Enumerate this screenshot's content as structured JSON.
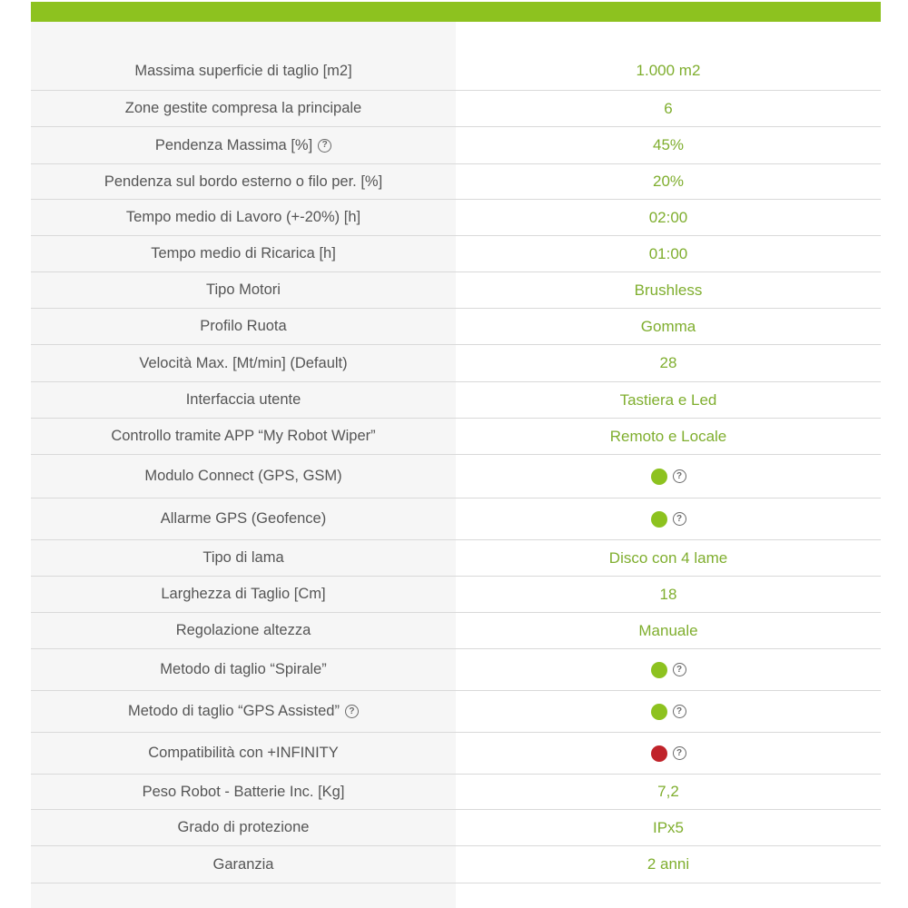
{
  "colors": {
    "accent": "#8dc21f",
    "value_text": "#7fae2e",
    "yes_dot": "#8dc21f",
    "no_dot": "#c0232a"
  },
  "rows": [
    {
      "label": "Massima superficie di taglio [m2]",
      "value": "1.000 m2"
    },
    {
      "label": "Zone gestite compresa la principale",
      "value": "6"
    },
    {
      "label": "Pendenza Massima [%]",
      "label_help_icon": "help-circle-icon",
      "value": "45%"
    },
    {
      "label": "Pendenza sul bordo esterno o filo per. [%]",
      "value": "20%"
    },
    {
      "label": "Tempo medio di Lavoro (+-20%) [h]",
      "value": "02:00"
    },
    {
      "label": "Tempo medio di Ricarica [h]",
      "value": "01:00"
    },
    {
      "label": "Tipo Motori",
      "value": "Brushless"
    },
    {
      "label": "Profilo Ruota",
      "value": "Gomma"
    },
    {
      "label": "Velocità Max. [Mt/min] (Default)",
      "value": "28"
    },
    {
      "label": "Interfaccia utente",
      "value": "Tastiera e Led"
    },
    {
      "label": "Controllo tramite APP “My Robot Wiper”",
      "value": "Remoto e Locale"
    },
    {
      "label": "Modulo Connect (GPS, GSM)",
      "value_indicator": "available",
      "value_help_icon": "help-circle-icon"
    },
    {
      "label": "Allarme GPS (Geofence)",
      "value_indicator": "available",
      "value_help_icon": "help-circle-icon"
    },
    {
      "label": "Tipo di lama",
      "value": "Disco con 4 lame"
    },
    {
      "label": "Larghezza di Taglio [Cm]",
      "value": "18"
    },
    {
      "label": "Regolazione altezza",
      "value": "Manuale"
    },
    {
      "label": "Metodo di taglio “Spirale”",
      "value_indicator": "available",
      "value_help_icon": "help-circle-icon"
    },
    {
      "label": "Metodo di taglio “GPS Assisted”",
      "label_help_icon": "help-circle-icon",
      "value_indicator": "available",
      "value_help_icon": "help-circle-icon"
    },
    {
      "label": "Compatibilità con +INFINITY",
      "value_indicator": "not-available",
      "value_help_icon": "help-circle-icon"
    },
    {
      "label": "Peso Robot - Batterie Inc. [Kg]",
      "value": "7,2"
    },
    {
      "label": "Grado di protezione",
      "value": "IPx5"
    },
    {
      "label": "Garanzia",
      "value": "2 anni"
    }
  ]
}
